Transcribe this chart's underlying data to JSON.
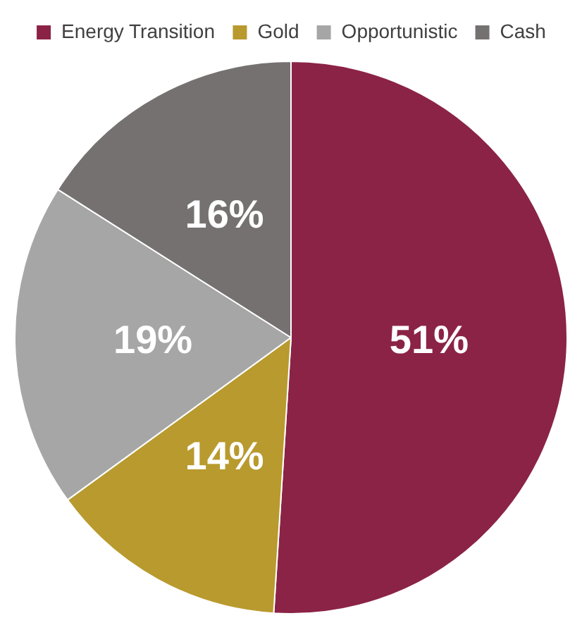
{
  "chart_data": {
    "type": "pie",
    "categories": [
      "Energy Transition",
      "Gold",
      "Opportunistic",
      "Cash"
    ],
    "values": [
      51,
      14,
      19,
      16
    ],
    "colors": [
      "#8b2346",
      "#b89a2e",
      "#a6a6a6",
      "#767171"
    ],
    "value_labels": [
      "51%",
      "14%",
      "19%",
      "16%"
    ],
    "legend": "top"
  }
}
